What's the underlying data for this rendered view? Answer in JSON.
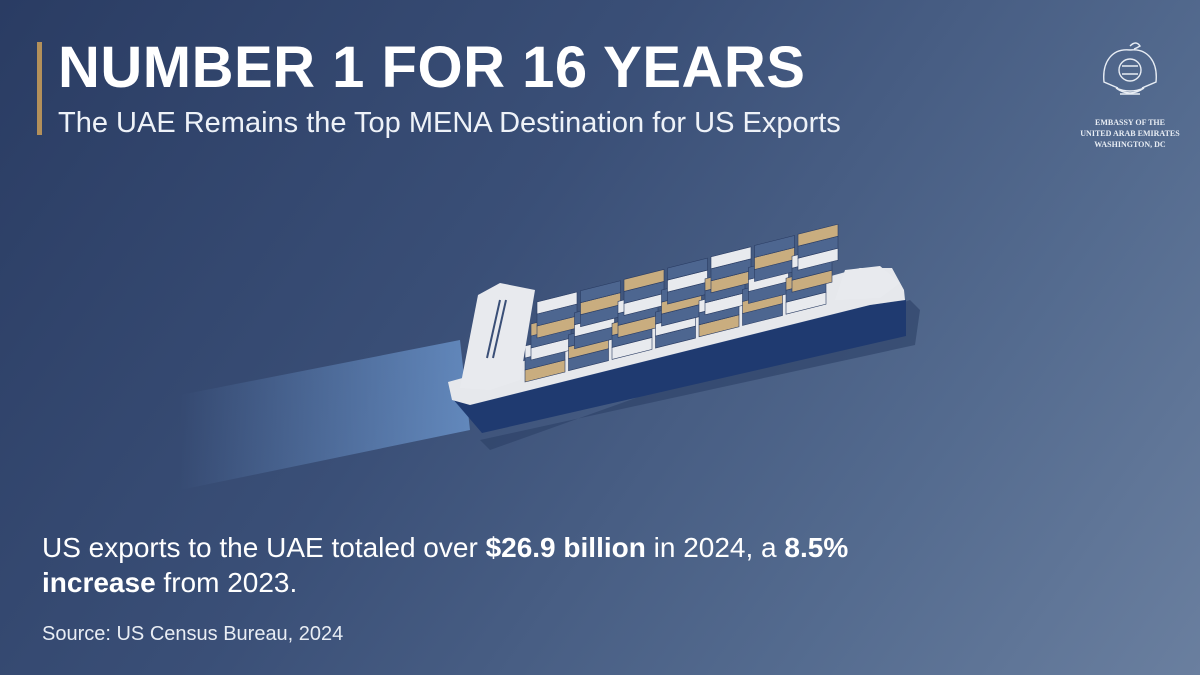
{
  "header": {
    "title": "NUMBER 1 FOR 16 YEARS",
    "subtitle": "The UAE Remains the Top MENA Destination for US Exports"
  },
  "logo": {
    "line1": "EMBASSY OF THE",
    "line2": "UNITED ARAB EMIRATES",
    "line3": "WASHINGTON, DC"
  },
  "body": {
    "p1": "US exports to the UAE totaled over ",
    "amount": "$26.9 billion",
    "p2": " in 2024, a ",
    "pct": "8.5%",
    "inc": "increase",
    "p3": " from 2023."
  },
  "source": "Source: US Census Bureau, 2024",
  "colors": {
    "accent": "#b3905a",
    "background": "#3a4f77",
    "hull": "#1f3a70",
    "container_tan": "#c9ad7f",
    "container_blue": "#4d6690",
    "container_white": "#e8eaee"
  }
}
